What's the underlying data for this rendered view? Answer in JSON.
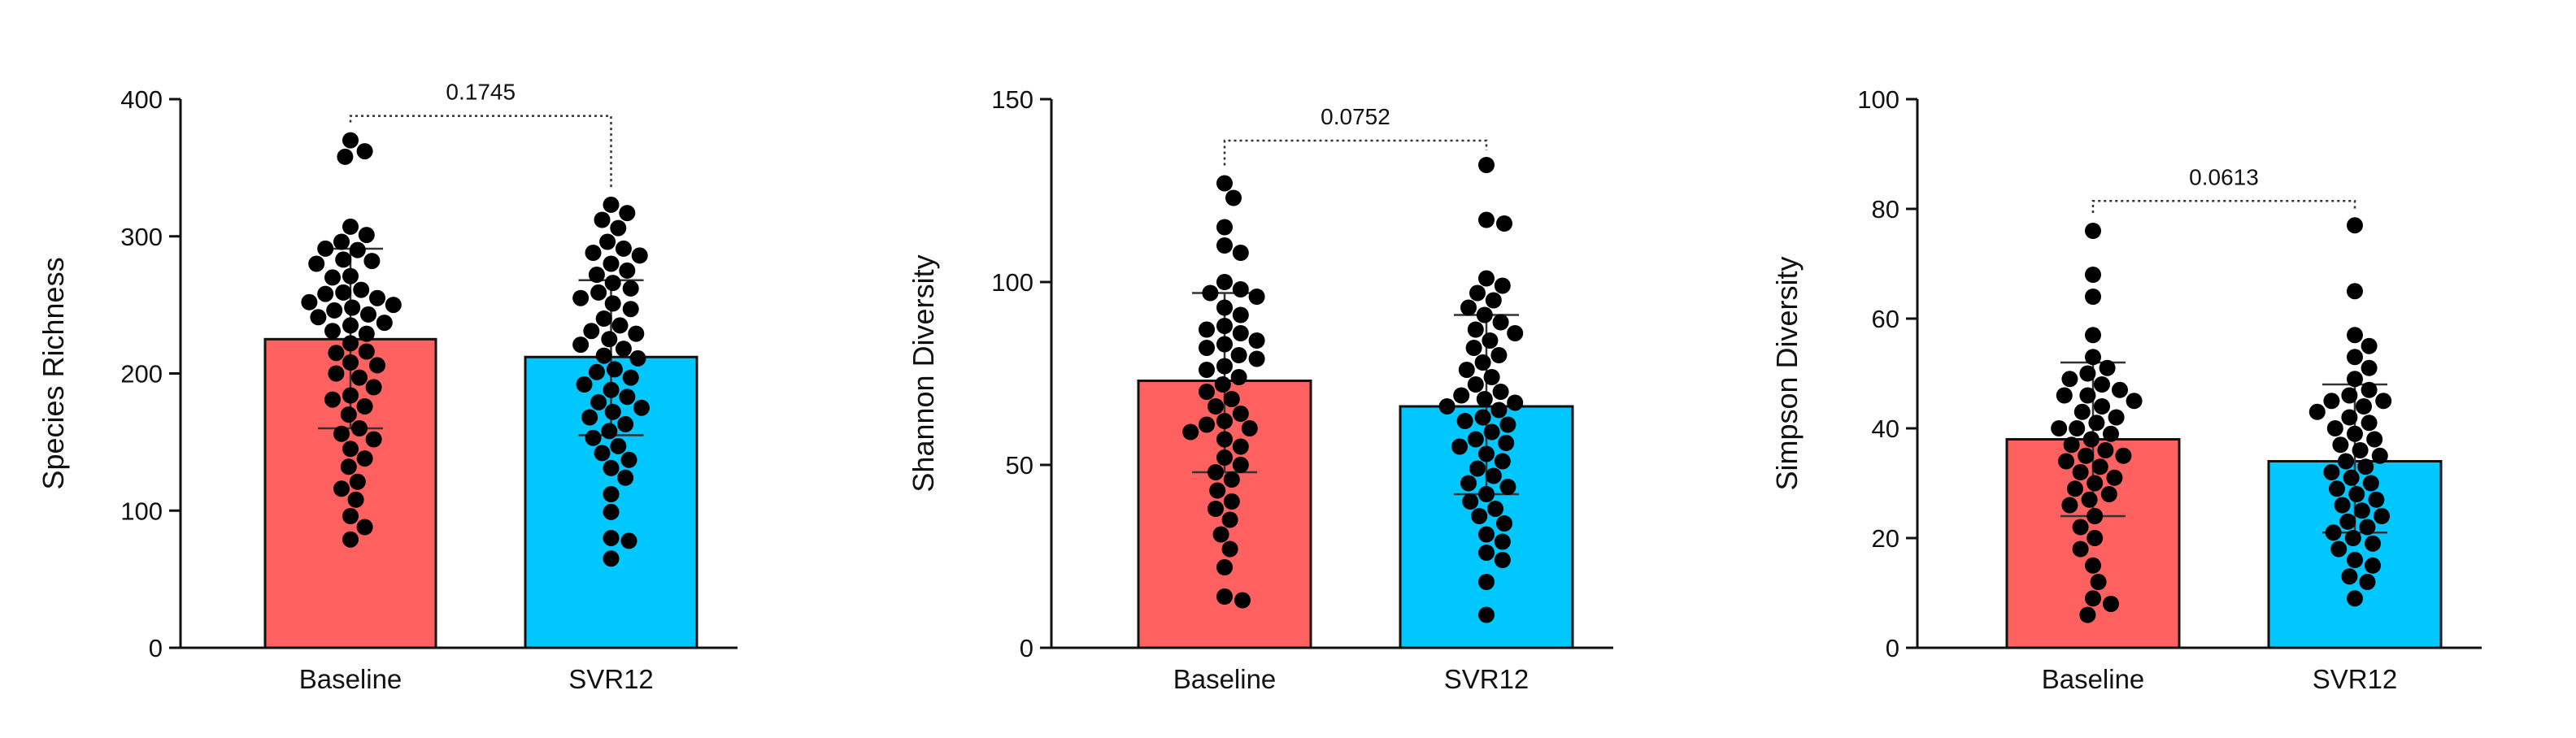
{
  "chart_data": [
    {
      "type": "bar",
      "ylabel": "Species Richness",
      "ylim": [
        0,
        400
      ],
      "yticks": [
        0,
        100,
        200,
        300,
        400
      ],
      "categories": [
        "Baseline",
        "SVR12"
      ],
      "series": [
        {
          "name": "Baseline",
          "mean": 225,
          "sd_low": 160,
          "sd_high": 291,
          "color": "#ff6161",
          "points": [
            370,
            362,
            358,
            307,
            301,
            296,
            290,
            291,
            282,
            283,
            280,
            271,
            270,
            261,
            259,
            258,
            255,
            252,
            250,
            248,
            246,
            243,
            241,
            237,
            235,
            231,
            229,
            222,
            216,
            215,
            208,
            206,
            200,
            197,
            190,
            184,
            181,
            176,
            170,
            160,
            156,
            152,
            145,
            138,
            132,
            121,
            116,
            108,
            96,
            88,
            79
          ]
        },
        {
          "name": "SVR12",
          "mean": 212,
          "sd_low": 155,
          "sd_high": 268,
          "color": "#00c8ff",
          "points": [
            323,
            317,
            312,
            306,
            296,
            291,
            288,
            286,
            280,
            275,
            272,
            266,
            262,
            259,
            255,
            251,
            247,
            240,
            235,
            231,
            229,
            225,
            221,
            218,
            213,
            211,
            203,
            201,
            197,
            192,
            188,
            183,
            179,
            175,
            172,
            168,
            163,
            158,
            153,
            147,
            142,
            137,
            131,
            124,
            112,
            99,
            80,
            78,
            65
          ]
        }
      ],
      "comparison": {
        "label": "0.1745"
      }
    },
    {
      "type": "bar",
      "ylabel": "Shannon Diversity",
      "ylim": [
        0,
        150
      ],
      "yticks": [
        0,
        50,
        100,
        150
      ],
      "categories": [
        "Baseline",
        "SVR12"
      ],
      "series": [
        {
          "name": "Baseline",
          "mean": 73,
          "sd_low": 48,
          "sd_high": 97,
          "color": "#ff6161",
          "points": [
            127,
            123,
            115,
            110,
            108,
            100,
            98,
            97,
            96,
            93,
            91,
            88,
            87,
            86,
            84,
            83,
            82,
            80,
            79,
            77,
            76,
            74,
            72,
            70,
            68,
            66,
            64,
            62,
            61,
            60,
            59,
            57,
            55,
            52,
            50,
            48,
            46,
            43,
            40,
            38,
            35,
            31,
            27,
            22,
            14,
            13
          ]
        },
        {
          "name": "SVR12",
          "mean": 66,
          "sd_low": 42,
          "sd_high": 91,
          "color": "#00c8ff",
          "points": [
            132,
            117,
            116,
            101,
            99,
            97,
            95,
            93,
            91,
            89,
            87,
            86,
            84,
            82,
            80,
            78,
            76,
            74,
            72,
            70,
            69,
            68,
            67,
            66,
            65,
            63,
            62,
            61,
            59,
            57,
            56,
            55,
            53,
            51,
            49,
            47,
            45,
            44,
            42,
            40,
            38,
            36,
            34,
            31,
            29,
            26,
            24,
            18,
            9
          ]
        }
      ],
      "comparison": {
        "label": "0.0752"
      }
    },
    {
      "type": "bar",
      "ylabel": "Simpson Diversity",
      "ylim": [
        0,
        100
      ],
      "yticks": [
        0,
        20,
        40,
        60,
        80,
        100
      ],
      "categories": [
        "Baseline",
        "SVR12"
      ],
      "series": [
        {
          "name": "Baseline",
          "mean": 38,
          "sd_low": 24,
          "sd_high": 52,
          "color": "#ff6161",
          "points": [
            76,
            68,
            64,
            57,
            53,
            51,
            50,
            49,
            48,
            47,
            46,
            46,
            45,
            44,
            43,
            42,
            41,
            40,
            40,
            39,
            38,
            37,
            36,
            35,
            35,
            34,
            33,
            32,
            31,
            30,
            29,
            28,
            27,
            26,
            24,
            22,
            20,
            18,
            15,
            12,
            9,
            8,
            6
          ]
        },
        {
          "name": "SVR12",
          "mean": 34,
          "sd_low": 21,
          "sd_high": 48,
          "color": "#00c8ff",
          "points": [
            77,
            65,
            57,
            55,
            53,
            51,
            49,
            47,
            46,
            45,
            45,
            44,
            43,
            42,
            41,
            40,
            39,
            38,
            37,
            36,
            35,
            34,
            33,
            32,
            31,
            30,
            29,
            28,
            27,
            26,
            25,
            24,
            23,
            22,
            21,
            20,
            19,
            18,
            16,
            15,
            13,
            12,
            9
          ]
        }
      ],
      "comparison": {
        "label": "0.0613"
      }
    }
  ]
}
